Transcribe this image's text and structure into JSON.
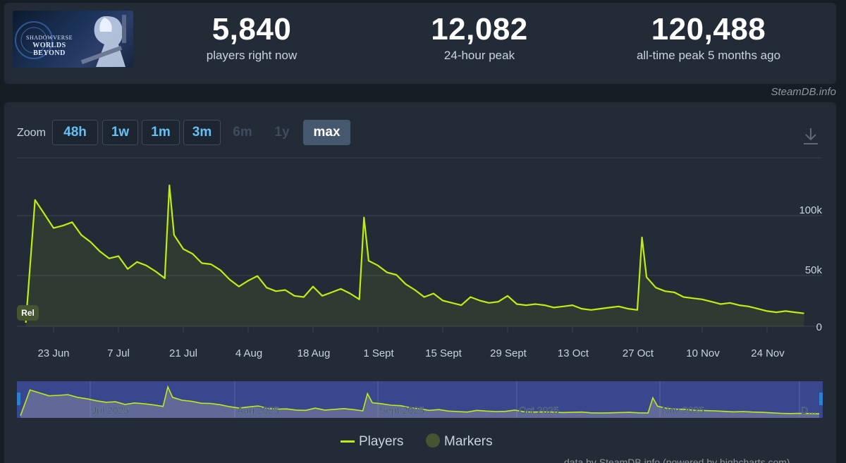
{
  "stats": {
    "game_title_top": "SHADOWVERSE",
    "game_title_sub": "WORLDS BEYOND",
    "current": {
      "value": "5,840",
      "label": "players right now"
    },
    "peak24": {
      "value": "12,082",
      "label": "24-hour peak"
    },
    "alltime": {
      "value": "120,488",
      "label": "all-time peak 5 months ago"
    }
  },
  "credit_top": "SteamDB.info",
  "zoom": {
    "label": "Zoom",
    "buttons": [
      "48h",
      "1w",
      "1m",
      "3m",
      "6m",
      "1y",
      "max"
    ],
    "active": "max",
    "disabled": [
      "6m",
      "1y"
    ]
  },
  "icons": {
    "download": "download-icon"
  },
  "colors": {
    "line": "#beee11",
    "marker": "#465431",
    "accent": "#66c0f4"
  },
  "marker_label": "Rel",
  "chart_data": {
    "type": "line",
    "series": [
      {
        "name": "Players",
        "x": [
          "2025-06-17",
          "2025-06-19",
          "2025-06-21",
          "2025-06-23",
          "2025-06-25",
          "2025-06-27",
          "2025-06-29",
          "2025-07-01",
          "2025-07-03",
          "2025-07-05",
          "2025-07-07",
          "2025-07-09",
          "2025-07-11",
          "2025-07-13",
          "2025-07-15",
          "2025-07-17",
          "2025-07-18",
          "2025-07-19",
          "2025-07-21",
          "2025-07-23",
          "2025-07-25",
          "2025-07-27",
          "2025-07-29",
          "2025-07-31",
          "2025-08-02",
          "2025-08-04",
          "2025-08-06",
          "2025-08-08",
          "2025-08-10",
          "2025-08-12",
          "2025-08-14",
          "2025-08-16",
          "2025-08-18",
          "2025-08-20",
          "2025-08-22",
          "2025-08-24",
          "2025-08-26",
          "2025-08-28",
          "2025-08-29",
          "2025-08-30",
          "2025-09-01",
          "2025-09-03",
          "2025-09-05",
          "2025-09-07",
          "2025-09-09",
          "2025-09-11",
          "2025-09-13",
          "2025-09-15",
          "2025-09-17",
          "2025-09-19",
          "2025-09-21",
          "2025-09-23",
          "2025-09-25",
          "2025-09-27",
          "2025-09-29",
          "2025-10-01",
          "2025-10-03",
          "2025-10-05",
          "2025-10-07",
          "2025-10-09",
          "2025-10-11",
          "2025-10-13",
          "2025-10-15",
          "2025-10-17",
          "2025-10-19",
          "2025-10-21",
          "2025-10-23",
          "2025-10-25",
          "2025-10-27",
          "2025-10-28",
          "2025-10-29",
          "2025-10-31",
          "2025-11-02",
          "2025-11-04",
          "2025-11-06",
          "2025-11-08",
          "2025-11-10",
          "2025-11-12",
          "2025-11-14",
          "2025-11-16",
          "2025-11-18",
          "2025-11-20",
          "2025-11-22",
          "2025-11-24",
          "2025-11-26",
          "2025-11-28",
          "2025-11-30",
          "2025-12-02"
        ],
        "y": [
          3000,
          108000,
          96000,
          84000,
          86000,
          89000,
          78000,
          72000,
          64000,
          58000,
          60000,
          49000,
          55000,
          52000,
          47000,
          41000,
          120488,
          78000,
          66000,
          62000,
          54000,
          53000,
          48000,
          40000,
          34000,
          39000,
          43000,
          33000,
          30000,
          31000,
          26000,
          25000,
          34000,
          26000,
          29000,
          32000,
          28000,
          23000,
          93000,
          56000,
          52000,
          46000,
          44000,
          36000,
          31000,
          25000,
          28000,
          22000,
          20000,
          18000,
          25000,
          22000,
          20000,
          21000,
          26000,
          19000,
          18000,
          19000,
          18000,
          16000,
          17000,
          18000,
          15000,
          14000,
          15000,
          16000,
          17000,
          15000,
          14000,
          76000,
          42000,
          33000,
          30000,
          29000,
          25000,
          24000,
          23000,
          21000,
          19000,
          20000,
          18000,
          17000,
          15000,
          13000,
          12000,
          13000,
          12000,
          11000
        ]
      }
    ],
    "x_ticks": [
      "23 Jun",
      "7 Jul",
      "21 Jul",
      "4 Aug",
      "18 Aug",
      "1 Sept",
      "15 Sept",
      "29 Sept",
      "13 Oct",
      "27 Oct",
      "10 Nov",
      "24 Nov"
    ],
    "y_ticks": [
      "100k",
      "50k",
      "0"
    ],
    "ylim": [
      0,
      120000
    ],
    "navigator_labels": [
      "Jul 2025",
      "Aug 2025",
      "Sept 2025",
      "Oct 2025",
      "Nov 2025",
      "D..."
    ],
    "legend": [
      "Players",
      "Markers"
    ],
    "legend_position": "bottom",
    "grid": true
  },
  "credit_bottom": "data by SteamDB.info (powered by highcharts.com)"
}
